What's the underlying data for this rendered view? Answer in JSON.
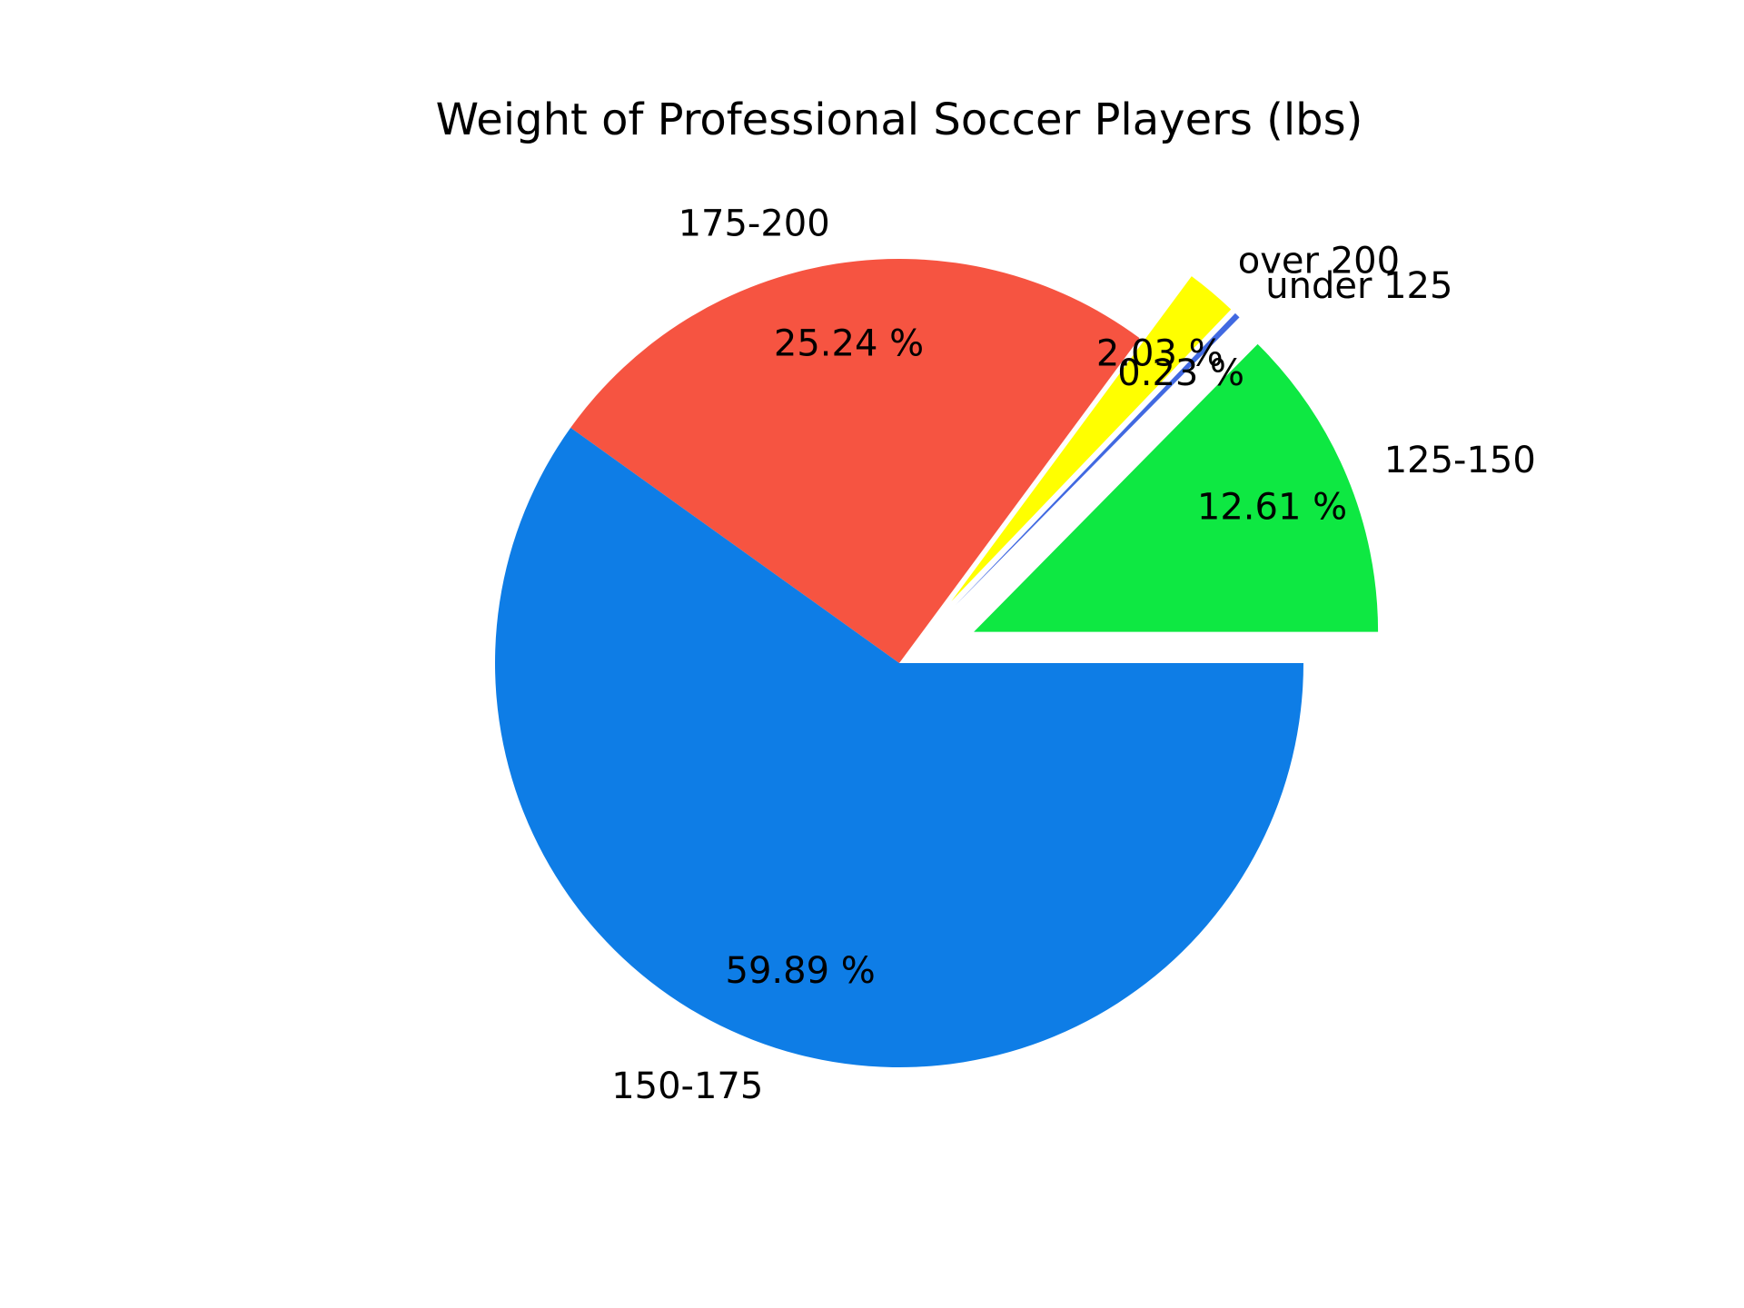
{
  "chart_data": {
    "type": "pie",
    "title": "Weight of Professional Soccer Players (lbs)",
    "categories": [
      "125-150",
      "under 125",
      "over 200",
      "175-200",
      "150-175"
    ],
    "values": [
      12.61,
      0.23,
      2.03,
      25.24,
      59.89
    ],
    "value_labels": [
      "12.61 %",
      "0.23 %",
      "2.03 %",
      "25.24 %",
      "59.89 %"
    ],
    "colors": [
      "#0ee842",
      "#4169e1",
      "#ffff00",
      "#f65441",
      "#0e7de6"
    ],
    "exploded": [
      true,
      true,
      true,
      false,
      false
    ],
    "start_angle": 0,
    "direction": "counterclockwise",
    "legend": "none"
  }
}
